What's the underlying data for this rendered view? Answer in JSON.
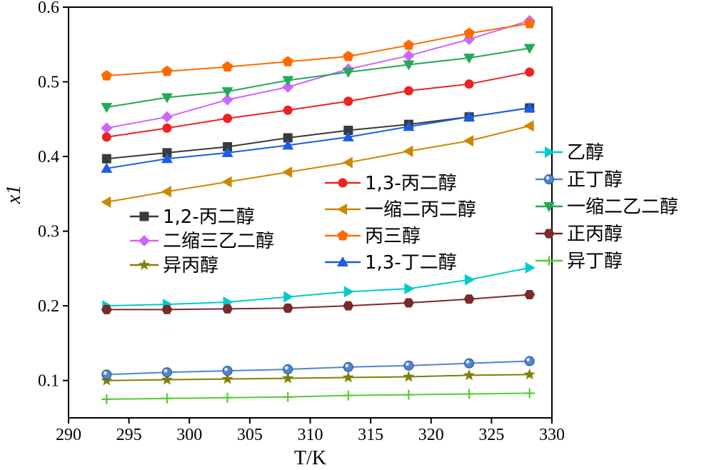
{
  "chart_data": {
    "type": "line",
    "xlabel": "T/K",
    "ylabel": "x1",
    "xlim": [
      290,
      330
    ],
    "ylim": [
      0.05,
      0.6
    ],
    "xticks": [
      290,
      295,
      300,
      305,
      310,
      315,
      320,
      325,
      330
    ],
    "yticks": [
      0.1,
      0.2,
      0.3,
      0.4,
      0.5,
      0.6
    ],
    "x": [
      293.15,
      298.15,
      303.15,
      308.15,
      313.15,
      318.15,
      323.15,
      328.15
    ],
    "grid": false,
    "series": [
      {
        "name": "1,2-丙二醇",
        "color": "#3a3a3a",
        "marker": "square",
        "values": [
          0.397,
          0.405,
          0.413,
          0.425,
          0.435,
          0.443,
          0.453,
          0.465
        ]
      },
      {
        "name": "二缩三乙二醇",
        "color": "#cc66ff",
        "marker": "diamond",
        "values": [
          0.438,
          0.453,
          0.476,
          0.493,
          0.517,
          0.535,
          0.557,
          0.582
        ]
      },
      {
        "name": "异丙醇",
        "color": "#808000",
        "marker": "star",
        "values": [
          0.1,
          0.101,
          0.102,
          0.103,
          0.104,
          0.105,
          0.107,
          0.108
        ]
      },
      {
        "name": "1,3-丙二醇",
        "color": "#ee2222",
        "marker": "circle",
        "values": [
          0.426,
          0.438,
          0.451,
          0.462,
          0.474,
          0.488,
          0.497,
          0.513
        ]
      },
      {
        "name": "一缩二丙二醇",
        "color": "#cc8800",
        "marker": "triangle-left",
        "values": [
          0.339,
          0.353,
          0.366,
          0.379,
          0.392,
          0.407,
          0.421,
          0.441
        ]
      },
      {
        "name": "丙三醇",
        "color": "#ff6a00",
        "marker": "pentagon",
        "values": [
          0.508,
          0.514,
          0.52,
          0.527,
          0.534,
          0.549,
          0.565,
          0.578
        ]
      },
      {
        "name": "1,3-丁二醇",
        "color": "#1a5ce6",
        "marker": "triangle-up",
        "values": [
          0.384,
          0.397,
          0.405,
          0.415,
          0.426,
          0.44,
          0.453,
          0.465
        ]
      },
      {
        "name": "乙醇",
        "color": "#00cccc",
        "marker": "triangle-right",
        "values": [
          0.2,
          0.202,
          0.205,
          0.212,
          0.219,
          0.223,
          0.235,
          0.251
        ]
      },
      {
        "name": "正丁醇",
        "color": "#4f86cc",
        "marker": "sphere",
        "values": [
          0.108,
          0.111,
          0.113,
          0.115,
          0.118,
          0.12,
          0.123,
          0.126
        ]
      },
      {
        "name": "一缩二乙二醇",
        "color": "#22aa55",
        "marker": "triangle-down",
        "values": [
          0.466,
          0.479,
          0.487,
          0.502,
          0.513,
          0.523,
          0.532,
          0.545
        ]
      },
      {
        "name": "正丙醇",
        "color": "#7a2a2a",
        "marker": "hexagon",
        "values": [
          0.195,
          0.195,
          0.196,
          0.197,
          0.2,
          0.204,
          0.209,
          0.215
        ]
      },
      {
        "name": "异丁醇",
        "color": "#55cc33",
        "marker": "plus",
        "values": [
          0.075,
          0.076,
          0.077,
          0.078,
          0.08,
          0.081,
          0.082,
          0.083
        ]
      }
    ],
    "legends": [
      {
        "placement": "left-middle",
        "series": [
          0,
          1,
          2
        ]
      },
      {
        "placement": "center",
        "series": [
          3,
          4,
          5,
          6
        ]
      },
      {
        "placement": "right",
        "series": [
          7,
          8,
          9,
          10,
          11
        ]
      }
    ]
  }
}
